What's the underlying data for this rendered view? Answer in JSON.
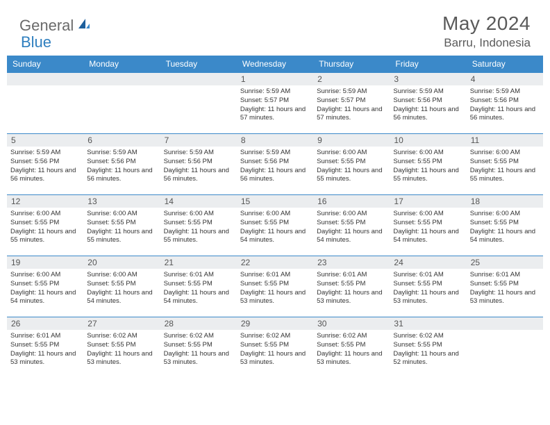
{
  "brand": {
    "general": "General",
    "blue": "Blue"
  },
  "title": "May 2024",
  "location": "Barru, Indonesia",
  "colors": {
    "header_bg": "#3b89c9",
    "header_text": "#ffffff",
    "daynum_bg": "#ebedef",
    "border": "#3b89c9",
    "text": "#333333",
    "title_text": "#5a5a5a"
  },
  "days_of_week": [
    "Sunday",
    "Monday",
    "Tuesday",
    "Wednesday",
    "Thursday",
    "Friday",
    "Saturday"
  ],
  "weeks": [
    [
      null,
      null,
      null,
      {
        "n": "1",
        "sr": "5:59 AM",
        "ss": "5:57 PM",
        "dl": "11 hours and 57 minutes."
      },
      {
        "n": "2",
        "sr": "5:59 AM",
        "ss": "5:57 PM",
        "dl": "11 hours and 57 minutes."
      },
      {
        "n": "3",
        "sr": "5:59 AM",
        "ss": "5:56 PM",
        "dl": "11 hours and 56 minutes."
      },
      {
        "n": "4",
        "sr": "5:59 AM",
        "ss": "5:56 PM",
        "dl": "11 hours and 56 minutes."
      }
    ],
    [
      {
        "n": "5",
        "sr": "5:59 AM",
        "ss": "5:56 PM",
        "dl": "11 hours and 56 minutes."
      },
      {
        "n": "6",
        "sr": "5:59 AM",
        "ss": "5:56 PM",
        "dl": "11 hours and 56 minutes."
      },
      {
        "n": "7",
        "sr": "5:59 AM",
        "ss": "5:56 PM",
        "dl": "11 hours and 56 minutes."
      },
      {
        "n": "8",
        "sr": "5:59 AM",
        "ss": "5:56 PM",
        "dl": "11 hours and 56 minutes."
      },
      {
        "n": "9",
        "sr": "6:00 AM",
        "ss": "5:55 PM",
        "dl": "11 hours and 55 minutes."
      },
      {
        "n": "10",
        "sr": "6:00 AM",
        "ss": "5:55 PM",
        "dl": "11 hours and 55 minutes."
      },
      {
        "n": "11",
        "sr": "6:00 AM",
        "ss": "5:55 PM",
        "dl": "11 hours and 55 minutes."
      }
    ],
    [
      {
        "n": "12",
        "sr": "6:00 AM",
        "ss": "5:55 PM",
        "dl": "11 hours and 55 minutes."
      },
      {
        "n": "13",
        "sr": "6:00 AM",
        "ss": "5:55 PM",
        "dl": "11 hours and 55 minutes."
      },
      {
        "n": "14",
        "sr": "6:00 AM",
        "ss": "5:55 PM",
        "dl": "11 hours and 55 minutes."
      },
      {
        "n": "15",
        "sr": "6:00 AM",
        "ss": "5:55 PM",
        "dl": "11 hours and 54 minutes."
      },
      {
        "n": "16",
        "sr": "6:00 AM",
        "ss": "5:55 PM",
        "dl": "11 hours and 54 minutes."
      },
      {
        "n": "17",
        "sr": "6:00 AM",
        "ss": "5:55 PM",
        "dl": "11 hours and 54 minutes."
      },
      {
        "n": "18",
        "sr": "6:00 AM",
        "ss": "5:55 PM",
        "dl": "11 hours and 54 minutes."
      }
    ],
    [
      {
        "n": "19",
        "sr": "6:00 AM",
        "ss": "5:55 PM",
        "dl": "11 hours and 54 minutes."
      },
      {
        "n": "20",
        "sr": "6:00 AM",
        "ss": "5:55 PM",
        "dl": "11 hours and 54 minutes."
      },
      {
        "n": "21",
        "sr": "6:01 AM",
        "ss": "5:55 PM",
        "dl": "11 hours and 54 minutes."
      },
      {
        "n": "22",
        "sr": "6:01 AM",
        "ss": "5:55 PM",
        "dl": "11 hours and 53 minutes."
      },
      {
        "n": "23",
        "sr": "6:01 AM",
        "ss": "5:55 PM",
        "dl": "11 hours and 53 minutes."
      },
      {
        "n": "24",
        "sr": "6:01 AM",
        "ss": "5:55 PM",
        "dl": "11 hours and 53 minutes."
      },
      {
        "n": "25",
        "sr": "6:01 AM",
        "ss": "5:55 PM",
        "dl": "11 hours and 53 minutes."
      }
    ],
    [
      {
        "n": "26",
        "sr": "6:01 AM",
        "ss": "5:55 PM",
        "dl": "11 hours and 53 minutes."
      },
      {
        "n": "27",
        "sr": "6:02 AM",
        "ss": "5:55 PM",
        "dl": "11 hours and 53 minutes."
      },
      {
        "n": "28",
        "sr": "6:02 AM",
        "ss": "5:55 PM",
        "dl": "11 hours and 53 minutes."
      },
      {
        "n": "29",
        "sr": "6:02 AM",
        "ss": "5:55 PM",
        "dl": "11 hours and 53 minutes."
      },
      {
        "n": "30",
        "sr": "6:02 AM",
        "ss": "5:55 PM",
        "dl": "11 hours and 53 minutes."
      },
      {
        "n": "31",
        "sr": "6:02 AM",
        "ss": "5:55 PM",
        "dl": "11 hours and 52 minutes."
      },
      null
    ]
  ],
  "labels": {
    "sunrise": "Sunrise: ",
    "sunset": "Sunset: ",
    "daylight": "Daylight: "
  }
}
